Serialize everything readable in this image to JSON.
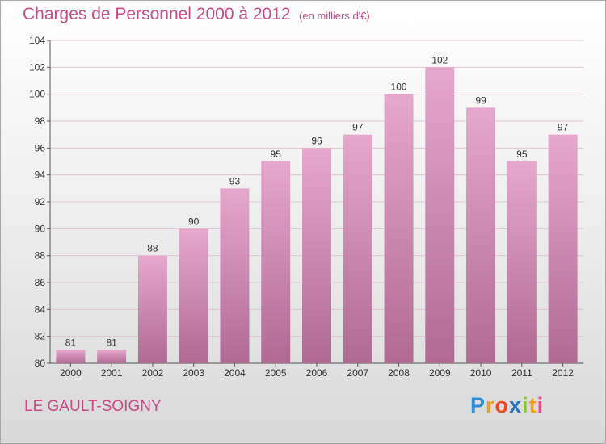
{
  "header": {
    "title": "Charges de Personnel 2000 à 2012",
    "subtitle": "(en milliers d'€)"
  },
  "footer": {
    "commune": "LE GAULT-SOIGNY",
    "logo_text": "Proxiti"
  },
  "colors": {
    "bar_top": "#e6a8cc",
    "bar_bottom": "#b06a92",
    "title": "#c94a86",
    "grid": "#e0c4d2"
  },
  "chart_data": {
    "type": "bar",
    "title": "Charges de Personnel 2000 à 2012",
    "subtitle": "(en milliers d'€)",
    "categories": [
      "2000",
      "2001",
      "2002",
      "2003",
      "2004",
      "2005",
      "2006",
      "2007",
      "2008",
      "2009",
      "2010",
      "2011",
      "2012"
    ],
    "values": [
      81,
      81,
      88,
      90,
      93,
      95,
      96,
      97,
      100,
      102,
      99,
      95,
      97
    ],
    "ylim": [
      80,
      104
    ],
    "yticks": [
      80,
      82,
      84,
      86,
      88,
      90,
      92,
      94,
      96,
      98,
      100,
      102,
      104
    ],
    "grid": true,
    "data_labels": true
  }
}
